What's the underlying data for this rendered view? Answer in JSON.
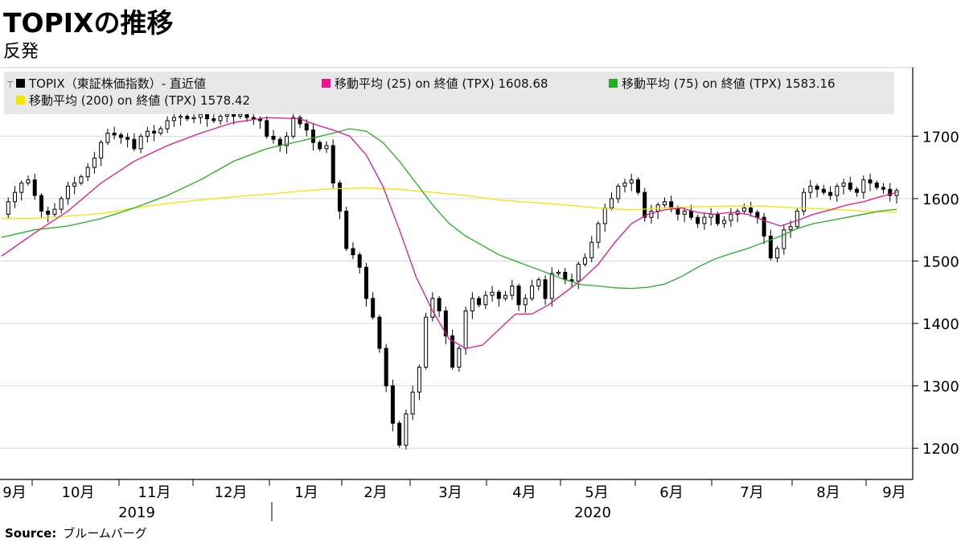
{
  "header": {
    "title": "TOPIXの推移",
    "subtitle": "反発"
  },
  "source": {
    "label": "Source:",
    "text": "ブルームバーグ"
  },
  "colors": {
    "candle": "#000000",
    "ma25": "#e8158c",
    "ma75": "#22b022",
    "ma200": "#f2e600",
    "legend_bg": "#e6e6e6",
    "grid": "#d9d9d9"
  },
  "legend": [
    {
      "label": "TOPIX（東証株価指数）- 直近値",
      "color": "#000000"
    },
    {
      "label": "移動平均 (25)  on 終値 (TPX) 1608.68",
      "color": "#e8158c"
    },
    {
      "label": "移動平均 (75)  on 終値 (TPX) 1583.16",
      "color": "#22b022"
    },
    {
      "label": "移動平均 (200)  on 終値 (TPX)  1578.42",
      "color": "#f2e600"
    }
  ],
  "chart_data": {
    "type": "candlestick",
    "ylim": [
      1150,
      1810
    ],
    "y_ticks": [
      1200,
      1300,
      1400,
      1500,
      1600,
      1700
    ],
    "x_months": [
      "9月",
      "10月",
      "11月",
      "12月",
      "1月",
      "2月",
      "3月",
      "4月",
      "5月",
      "6月",
      "7月",
      "8月",
      "9月"
    ],
    "x_years": [
      "2019",
      "2020"
    ],
    "series": [
      {
        "name": "TOPIX（東証株価指数）- 直近値",
        "close_points": [
          [
            0,
            1575
          ],
          [
            2,
            1595
          ],
          [
            4,
            1610
          ],
          [
            6,
            1625
          ],
          [
            8,
            1630
          ],
          [
            10,
            1605
          ],
          [
            12,
            1580
          ],
          [
            14,
            1575
          ],
          [
            16,
            1583
          ],
          [
            18,
            1600
          ],
          [
            20,
            1620
          ],
          [
            22,
            1625
          ],
          [
            24,
            1635
          ],
          [
            26,
            1650
          ],
          [
            28,
            1665
          ],
          [
            30,
            1690
          ],
          [
            32,
            1705
          ],
          [
            34,
            1702
          ],
          [
            36,
            1698
          ],
          [
            38,
            1695
          ],
          [
            40,
            1680
          ],
          [
            42,
            1700
          ],
          [
            44,
            1708
          ],
          [
            46,
            1705
          ],
          [
            48,
            1712
          ],
          [
            50,
            1725
          ],
          [
            52,
            1730
          ],
          [
            54,
            1732
          ],
          [
            56,
            1728
          ],
          [
            58,
            1730
          ],
          [
            60,
            1735
          ],
          [
            62,
            1728
          ],
          [
            64,
            1725
          ],
          [
            66,
            1732
          ],
          [
            68,
            1735
          ],
          [
            70,
            1732
          ],
          [
            72,
            1735
          ],
          [
            74,
            1730
          ],
          [
            76,
            1728
          ],
          [
            78,
            1725
          ],
          [
            80,
            1700
          ],
          [
            82,
            1695
          ],
          [
            84,
            1685
          ],
          [
            86,
            1700
          ],
          [
            88,
            1730
          ],
          [
            90,
            1720
          ],
          [
            92,
            1710
          ],
          [
            94,
            1690
          ],
          [
            96,
            1680
          ],
          [
            98,
            1685
          ],
          [
            100,
            1625
          ],
          [
            102,
            1580
          ],
          [
            104,
            1520
          ],
          [
            106,
            1510
          ],
          [
            108,
            1490
          ],
          [
            110,
            1440
          ],
          [
            112,
            1410
          ],
          [
            114,
            1360
          ],
          [
            116,
            1300
          ],
          [
            118,
            1240
          ],
          [
            120,
            1205
          ],
          [
            122,
            1255
          ],
          [
            124,
            1290
          ],
          [
            126,
            1330
          ],
          [
            128,
            1410
          ],
          [
            130,
            1440
          ],
          [
            132,
            1420
          ],
          [
            134,
            1380
          ],
          [
            136,
            1330
          ],
          [
            138,
            1360
          ],
          [
            140,
            1420
          ],
          [
            142,
            1440
          ],
          [
            144,
            1430
          ],
          [
            146,
            1445
          ],
          [
            148,
            1450
          ],
          [
            150,
            1440
          ],
          [
            152,
            1445
          ],
          [
            154,
            1460
          ],
          [
            156,
            1430
          ],
          [
            158,
            1440
          ],
          [
            160,
            1460
          ],
          [
            162,
            1470
          ],
          [
            164,
            1440
          ],
          [
            166,
            1480
          ],
          [
            168,
            1482
          ],
          [
            170,
            1470
          ],
          [
            172,
            1468
          ],
          [
            174,
            1495
          ],
          [
            176,
            1505
          ],
          [
            178,
            1530
          ],
          [
            180,
            1560
          ],
          [
            182,
            1585
          ],
          [
            184,
            1600
          ],
          [
            186,
            1620
          ],
          [
            188,
            1625
          ],
          [
            190,
            1630
          ],
          [
            192,
            1610
          ],
          [
            194,
            1570
          ],
          [
            196,
            1580
          ],
          [
            198,
            1590
          ],
          [
            200,
            1595
          ],
          [
            202,
            1585
          ],
          [
            204,
            1575
          ],
          [
            206,
            1580
          ],
          [
            208,
            1570
          ],
          [
            210,
            1560
          ],
          [
            212,
            1570
          ],
          [
            214,
            1575
          ],
          [
            216,
            1560
          ],
          [
            218,
            1565
          ],
          [
            220,
            1575
          ],
          [
            222,
            1580
          ],
          [
            224,
            1585
          ],
          [
            226,
            1578
          ],
          [
            228,
            1570
          ],
          [
            230,
            1540
          ],
          [
            232,
            1505
          ],
          [
            234,
            1520
          ],
          [
            236,
            1550
          ],
          [
            238,
            1555
          ],
          [
            240,
            1580
          ],
          [
            242,
            1610
          ],
          [
            244,
            1620
          ],
          [
            246,
            1615
          ],
          [
            248,
            1610
          ],
          [
            250,
            1605
          ],
          [
            252,
            1620
          ],
          [
            254,
            1625
          ],
          [
            256,
            1615
          ],
          [
            258,
            1610
          ],
          [
            260,
            1630
          ],
          [
            262,
            1625
          ],
          [
            264,
            1618
          ],
          [
            266,
            1615
          ],
          [
            268,
            1605
          ],
          [
            270,
            1613
          ]
        ]
      },
      {
        "name": "移動平均 (25)  on 終値 (TPX) 1608.68",
        "points": [
          [
            0,
            1508
          ],
          [
            10,
            1545
          ],
          [
            20,
            1580
          ],
          [
            30,
            1625
          ],
          [
            40,
            1660
          ],
          [
            50,
            1685
          ],
          [
            60,
            1705
          ],
          [
            70,
            1722
          ],
          [
            80,
            1730
          ],
          [
            90,
            1728
          ],
          [
            95,
            1718
          ],
          [
            100,
            1710
          ],
          [
            105,
            1700
          ],
          [
            110,
            1670
          ],
          [
            115,
            1620
          ],
          [
            120,
            1550
          ],
          [
            125,
            1475
          ],
          [
            130,
            1420
          ],
          [
            135,
            1375
          ],
          [
            140,
            1360
          ],
          [
            145,
            1365
          ],
          [
            150,
            1390
          ],
          [
            155,
            1415
          ],
          [
            160,
            1415
          ],
          [
            165,
            1430
          ],
          [
            170,
            1450
          ],
          [
            175,
            1470
          ],
          [
            180,
            1495
          ],
          [
            185,
            1530
          ],
          [
            190,
            1560
          ],
          [
            195,
            1575
          ],
          [
            200,
            1582
          ],
          [
            205,
            1585
          ],
          [
            210,
            1578
          ],
          [
            215,
            1575
          ],
          [
            220,
            1578
          ],
          [
            225,
            1575
          ],
          [
            230,
            1565
          ],
          [
            235,
            1556
          ],
          [
            240,
            1565
          ],
          [
            245,
            1575
          ],
          [
            250,
            1582
          ],
          [
            255,
            1590
          ],
          [
            260,
            1595
          ],
          [
            265,
            1603
          ],
          [
            270,
            1610
          ]
        ]
      },
      {
        "name": "移動平均 (75)  on 終値 (TPX) 1583.16",
        "points": [
          [
            0,
            1538
          ],
          [
            10,
            1550
          ],
          [
            20,
            1556
          ],
          [
            30,
            1568
          ],
          [
            40,
            1585
          ],
          [
            50,
            1605
          ],
          [
            60,
            1630
          ],
          [
            70,
            1660
          ],
          [
            80,
            1680
          ],
          [
            90,
            1692
          ],
          [
            100,
            1705
          ],
          [
            105,
            1712
          ],
          [
            110,
            1708
          ],
          [
            115,
            1690
          ],
          [
            120,
            1660
          ],
          [
            125,
            1625
          ],
          [
            130,
            1590
          ],
          [
            135,
            1560
          ],
          [
            140,
            1540
          ],
          [
            145,
            1525
          ],
          [
            150,
            1510
          ],
          [
            155,
            1500
          ],
          [
            160,
            1490
          ],
          [
            165,
            1480
          ],
          [
            170,
            1470
          ],
          [
            175,
            1462
          ],
          [
            180,
            1460
          ],
          [
            185,
            1457
          ],
          [
            190,
            1456
          ],
          [
            195,
            1458
          ],
          [
            200,
            1463
          ],
          [
            205,
            1475
          ],
          [
            210,
            1490
          ],
          [
            215,
            1503
          ],
          [
            220,
            1512
          ],
          [
            225,
            1520
          ],
          [
            230,
            1530
          ],
          [
            235,
            1540
          ],
          [
            240,
            1552
          ],
          [
            245,
            1560
          ],
          [
            250,
            1565
          ],
          [
            255,
            1570
          ],
          [
            260,
            1575
          ],
          [
            265,
            1580
          ],
          [
            270,
            1583
          ]
        ]
      },
      {
        "name": "移動平均 (200)  on 終値 (TPX)  1578.42",
        "points": [
          [
            0,
            1568
          ],
          [
            10,
            1568
          ],
          [
            20,
            1572
          ],
          [
            30,
            1576
          ],
          [
            40,
            1585
          ],
          [
            50,
            1592
          ],
          [
            60,
            1598
          ],
          [
            70,
            1603
          ],
          [
            80,
            1607
          ],
          [
            90,
            1612
          ],
          [
            100,
            1616
          ],
          [
            110,
            1617
          ],
          [
            120,
            1615
          ],
          [
            130,
            1610
          ],
          [
            140,
            1605
          ],
          [
            150,
            1598
          ],
          [
            160,
            1594
          ],
          [
            170,
            1590
          ],
          [
            180,
            1585
          ],
          [
            190,
            1582
          ],
          [
            200,
            1585
          ],
          [
            210,
            1587
          ],
          [
            220,
            1588
          ],
          [
            230,
            1588
          ],
          [
            240,
            1585
          ],
          [
            250,
            1583
          ],
          [
            260,
            1580
          ],
          [
            270,
            1578
          ]
        ]
      }
    ]
  }
}
